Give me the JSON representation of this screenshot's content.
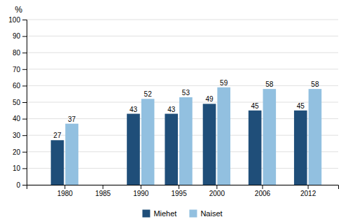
{
  "chart_data": {
    "type": "bar",
    "x": [
      1980,
      1985,
      1990,
      1995,
      2000,
      2006,
      2012
    ],
    "series": [
      {
        "name": "Miehet",
        "color": "#1F4E79",
        "values": [
          27,
          null,
          43,
          43,
          49,
          45,
          45
        ]
      },
      {
        "name": "Naiset",
        "color": "#92C0E0",
        "values": [
          37,
          null,
          52,
          53,
          59,
          58,
          58
        ]
      }
    ],
    "ylabel": "%",
    "xlim": [
      1975,
      2016
    ],
    "xticks": [
      1980,
      1985,
      1990,
      1995,
      2000,
      2006,
      2012
    ],
    "ylim": [
      0,
      100
    ],
    "yticks": [
      0,
      10,
      20,
      30,
      40,
      50,
      60,
      70,
      80,
      90,
      100
    ],
    "grid": true,
    "data_labels": true,
    "legend": "bottom"
  }
}
